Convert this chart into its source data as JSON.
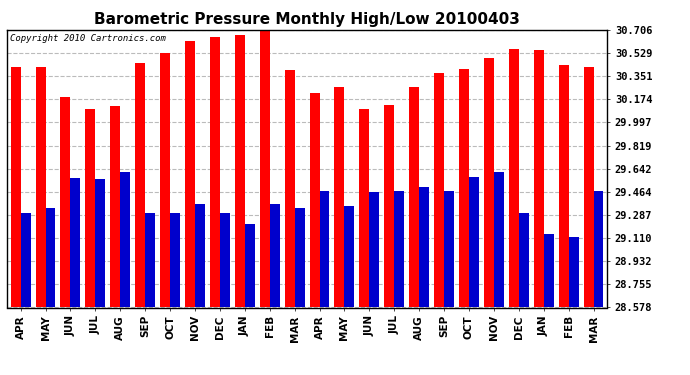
{
  "title": "Barometric Pressure Monthly High/Low 20100403",
  "copyright": "Copyright 2010 Cartronics.com",
  "months": [
    "APR",
    "MAY",
    "JUN",
    "JUL",
    "AUG",
    "SEP",
    "OCT",
    "NOV",
    "DEC",
    "JAN",
    "FEB",
    "MAR",
    "APR",
    "MAY",
    "JUN",
    "JUL",
    "AUG",
    "SEP",
    "OCT",
    "NOV",
    "DEC",
    "JAN",
    "FEB",
    "MAR"
  ],
  "highs": [
    30.42,
    30.42,
    30.19,
    30.1,
    30.12,
    30.45,
    30.53,
    30.62,
    30.65,
    30.67,
    30.75,
    30.4,
    30.22,
    30.27,
    30.1,
    30.13,
    30.27,
    30.38,
    30.41,
    30.49,
    30.56,
    30.55,
    30.44,
    30.42
  ],
  "lows": [
    29.3,
    29.34,
    29.57,
    29.56,
    29.62,
    29.3,
    29.3,
    29.37,
    29.3,
    29.22,
    29.37,
    29.34,
    29.47,
    29.36,
    29.46,
    29.47,
    29.5,
    29.47,
    29.58,
    29.62,
    29.3,
    29.14,
    29.12,
    29.47
  ],
  "yticks": [
    28.578,
    28.755,
    28.932,
    29.11,
    29.287,
    29.464,
    29.642,
    29.819,
    29.997,
    30.174,
    30.351,
    30.529,
    30.706
  ],
  "ymin": 28.578,
  "ymax": 30.706,
  "high_color": "#FF0000",
  "low_color": "#0000CC",
  "bg_color": "#FFFFFF",
  "grid_color": "#BBBBBB",
  "title_fontsize": 11,
  "bar_width": 0.4,
  "figsize": [
    6.9,
    3.75
  ],
  "dpi": 100
}
